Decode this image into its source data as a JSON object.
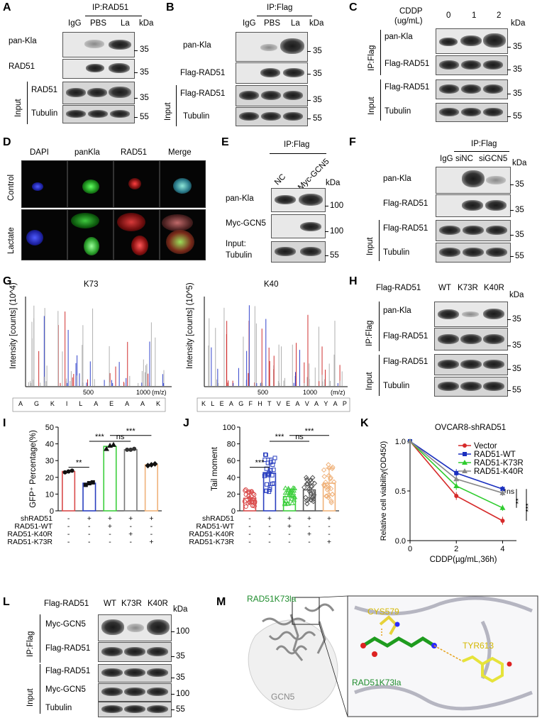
{
  "panels": {
    "A": {
      "letter": "A",
      "ip": "IP:RAD51",
      "lanes": [
        "IgG",
        "PBS",
        "La"
      ],
      "kda": "kDa",
      "rows": [
        "pan-Kla",
        "RAD51",
        "RAD51",
        "Tubulin"
      ],
      "mw": [
        "35",
        "35",
        "35",
        "55"
      ],
      "input": "Input"
    },
    "B": {
      "letter": "B",
      "ip": "IP:Flag",
      "lanes": [
        "IgG",
        "PBS",
        "La"
      ],
      "kda": "kDa",
      "rows": [
        "pan-Kla",
        "Flag-RAD51",
        "Flag-RAD51",
        "Tubulin"
      ],
      "mw": [
        "35",
        "35",
        "35",
        "55"
      ],
      "input": "Input"
    },
    "C": {
      "letter": "C",
      "treat": "CDDP",
      "unit": "(ug/mL)",
      "lanes": [
        "0",
        "1",
        "2"
      ],
      "kda": "kDa",
      "rows": [
        "pan-Kla",
        "Flag-RAD51",
        "Flag-RAD51",
        "Tubulin"
      ],
      "mw": [
        "35",
        "35",
        "35",
        "55"
      ],
      "ip": "IP:Flag",
      "input": "Input"
    },
    "D": {
      "letter": "D",
      "cols": [
        "DAPI",
        "panKla",
        "RAD51",
        "Merge"
      ],
      "rows": [
        "Control",
        "Lactate"
      ]
    },
    "E": {
      "letter": "E",
      "ip": "IP:Flag",
      "lanes": [
        "NC",
        "Myc-GCN5"
      ],
      "kda": "kDa",
      "rows": [
        "pan-Kla",
        "Myc-GCN5",
        "Input:",
        "Tubulin"
      ],
      "mw": [
        "100",
        "100",
        "55"
      ]
    },
    "F": {
      "letter": "F",
      "ip": "IP:Flag",
      "lanes": [
        "IgG",
        "siNC",
        "siGCN5"
      ],
      "kda": "kDa",
      "rows": [
        "pan-Kla",
        "Flag-RAD51",
        "Flag-RAD51",
        "Tubulin"
      ],
      "mw": [
        "35",
        "35",
        "35",
        "55"
      ],
      "input": "Input"
    },
    "G": {
      "letter": "G",
      "titles": [
        "K73",
        "K40"
      ],
      "ylabels": [
        "Intensity [counts] (10^4)",
        "Intensity [counts] (10^5)"
      ],
      "xticks": [
        "500",
        "1000"
      ],
      "xunit": "(m/z)",
      "seq1": [
        "A",
        "G",
        "K",
        "I",
        "L",
        "A",
        "E",
        "A",
        "A",
        "K"
      ],
      "seq2": [
        "K",
        "L",
        "E",
        "A",
        "G",
        "F",
        "H",
        "T",
        "V",
        "E",
        "A",
        "V",
        "A",
        "Y",
        "A",
        "P"
      ]
    },
    "H": {
      "letter": "H",
      "construct": "Flag-RAD51",
      "lanes": [
        "WT",
        "K73R",
        "K40R"
      ],
      "kda": "kDa",
      "rows": [
        "pan-Kla",
        "Flag-RAD51",
        "Flag-RAD51",
        "Tubulin"
      ],
      "mw": [
        "35",
        "35",
        "35",
        "55"
      ],
      "ip": "IP:Flag",
      "input": "Input"
    },
    "I": {
      "letter": "I"
    },
    "J": {
      "letter": "J"
    },
    "K": {
      "letter": "K"
    },
    "L": {
      "letter": "L",
      "construct": "Flag-RAD51",
      "lanes": [
        "WT",
        "K73R",
        "K40R"
      ],
      "kda": "kDa",
      "rows": [
        "Myc-GCN5",
        "Flag-RAD51",
        "Flag-RAD51",
        "Myc-GCN5",
        "Tubulin"
      ],
      "mw": [
        "100",
        "35",
        "35",
        "100",
        "55"
      ],
      "ip": "IP:Flag",
      "input": "Input"
    },
    "M": {
      "letter": "M",
      "labels": {
        "site_top": "RAD51K73la",
        "partner": "GCN5",
        "res1": "CYS579",
        "res2": "TYR613",
        "site_zoom": "RAD51K73la"
      }
    }
  },
  "chart_data": [
    {
      "panel": "I",
      "type": "bar",
      "ylabel": "GFP⁺ Percentage(%)",
      "ylim": [
        0,
        50
      ],
      "yticks": [
        "0",
        "10",
        "20",
        "30",
        "40",
        "50"
      ],
      "values": [
        23.5,
        16.5,
        38.5,
        36.5,
        27.5
      ],
      "colors": [
        "#d94a4a",
        "#2a3fbf",
        "#3ccf3c",
        "#777777",
        "#f0b27a"
      ],
      "points": [
        [
          23,
          23.5,
          24
        ],
        [
          15.5,
          16.5,
          17
        ],
        [
          37,
          39,
          39.5
        ],
        [
          36.5,
          36.5,
          37
        ],
        [
          27,
          27.5,
          28
        ]
      ],
      "row_labels": [
        "shRAD51",
        "RAD51-WT",
        "RAD51-K40R",
        "RAD51-K73R"
      ],
      "signs": [
        [
          "-",
          "+",
          "+",
          "+",
          "+"
        ],
        [
          "-",
          "-",
          "+",
          "-",
          "-"
        ],
        [
          "-",
          "-",
          "-",
          "+",
          "-"
        ],
        [
          "-",
          "-",
          "-",
          "-",
          "+"
        ]
      ],
      "sig": [
        "**",
        "***",
        "ns",
        "***"
      ]
    },
    {
      "panel": "J",
      "type": "bar",
      "ylabel": "Tail moment",
      "ylim": [
        0,
        100
      ],
      "yticks": [
        "0",
        "20",
        "40",
        "60",
        "80",
        "100"
      ],
      "values": [
        15,
        45,
        17,
        25,
        33
      ],
      "errors": [
        8,
        18,
        8,
        13,
        18
      ],
      "colors": [
        "#d94a4a",
        "#2a3fbf",
        "#3ccf3c",
        "#555555",
        "#f0b27a"
      ],
      "row_labels": [
        "shRAD51",
        "RAD51-WT",
        "RAD51-K40R",
        "RAD51-K73R"
      ],
      "signs": [
        [
          "-",
          "+",
          "+",
          "+",
          "+"
        ],
        [
          "-",
          "-",
          "+",
          "-",
          "-"
        ],
        [
          "-",
          "-",
          "-",
          "+",
          "-"
        ],
        [
          "-",
          "-",
          "-",
          "-",
          "+"
        ]
      ],
      "sig": [
        "***",
        "***",
        "ns",
        "***"
      ]
    },
    {
      "panel": "K",
      "type": "line",
      "title": "OVCAR8-shRAD51",
      "xlabel": "CDDP(µg/mL,36h)",
      "ylabel": "Relative cell viability(OD450)",
      "xlim": [
        0,
        4.6
      ],
      "ylim": [
        0,
        1.0
      ],
      "xticks": [
        "0",
        "2",
        "4"
      ],
      "yticks": [
        "0.0",
        "0.5",
        "1.0"
      ],
      "x": [
        0,
        2,
        4
      ],
      "series": [
        {
          "name": "Vector",
          "values": [
            1.0,
            0.45,
            0.2
          ],
          "errors": [
            0.0,
            0.04,
            0.04
          ],
          "color": "#d62a2a",
          "marker": "circle"
        },
        {
          "name": "RAD51-WT",
          "values": [
            1.0,
            0.68,
            0.52
          ],
          "errors": [
            0.0,
            0.04,
            0.03
          ],
          "color": "#1a2fbf",
          "marker": "square"
        },
        {
          "name": "RAD51-K73R",
          "values": [
            1.0,
            0.55,
            0.33
          ],
          "errors": [
            0.0,
            0.04,
            0.03
          ],
          "color": "#2ecc2e",
          "marker": "triangle"
        },
        {
          "name": "RAD51-K40R",
          "values": [
            1.0,
            0.62,
            0.48
          ],
          "errors": [
            0.0,
            0.03,
            0.03
          ],
          "color": "#888888",
          "marker": "triangle"
        }
      ],
      "sig": [
        "ns",
        "**",
        "***"
      ]
    }
  ]
}
